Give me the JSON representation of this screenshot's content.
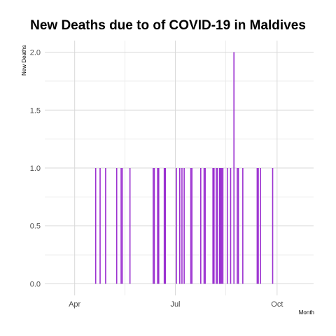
{
  "chart_data": {
    "type": "bar",
    "title": "New Deaths due to of COVID-19 in Maldives",
    "xlabel": "Month",
    "ylabel": "New  Deaths",
    "ylim": [
      -0.1,
      2.1
    ],
    "y_ticks": [
      "0.0",
      "0.5",
      "1.0",
      "1.5",
      "2.0"
    ],
    "x_ticks": [
      {
        "label": "Apr",
        "date": "2020-04-01"
      },
      {
        "label": "Jul",
        "date": "2020-07-01"
      },
      {
        "label": "Oct",
        "date": "2020-10-01"
      }
    ],
    "xlim": [
      "2020-03-05",
      "2020-11-03"
    ],
    "bar_color": "#9b30d0",
    "grid": true,
    "points": [
      {
        "date": "2020-04-20",
        "value": 1
      },
      {
        "date": "2020-04-24",
        "value": 1
      },
      {
        "date": "2020-04-29",
        "value": 1
      },
      {
        "date": "2020-05-09",
        "value": 1
      },
      {
        "date": "2020-05-13",
        "value": 1
      },
      {
        "date": "2020-05-14",
        "value": 1
      },
      {
        "date": "2020-05-21",
        "value": 1
      },
      {
        "date": "2020-06-11",
        "value": 1
      },
      {
        "date": "2020-06-12",
        "value": 1
      },
      {
        "date": "2020-06-15",
        "value": 1
      },
      {
        "date": "2020-06-16",
        "value": 1
      },
      {
        "date": "2020-06-21",
        "value": 1
      },
      {
        "date": "2020-06-22",
        "value": 1
      },
      {
        "date": "2020-07-02",
        "value": 1
      },
      {
        "date": "2020-07-05",
        "value": 1
      },
      {
        "date": "2020-07-07",
        "value": 1
      },
      {
        "date": "2020-07-09",
        "value": 1
      },
      {
        "date": "2020-07-15",
        "value": 1
      },
      {
        "date": "2020-07-16",
        "value": 1
      },
      {
        "date": "2020-07-24",
        "value": 1
      },
      {
        "date": "2020-07-27",
        "value": 1
      },
      {
        "date": "2020-07-28",
        "value": 1
      },
      {
        "date": "2020-08-04",
        "value": 1
      },
      {
        "date": "2020-08-05",
        "value": 1
      },
      {
        "date": "2020-08-07",
        "value": 1
      },
      {
        "date": "2020-08-08",
        "value": 1
      },
      {
        "date": "2020-08-10",
        "value": 1
      },
      {
        "date": "2020-08-11",
        "value": 1
      },
      {
        "date": "2020-08-12",
        "value": 1
      },
      {
        "date": "2020-08-13",
        "value": 1
      },
      {
        "date": "2020-08-17",
        "value": 1
      },
      {
        "date": "2020-08-20",
        "value": 1
      },
      {
        "date": "2020-08-23",
        "value": 2
      },
      {
        "date": "2020-08-26",
        "value": 1
      },
      {
        "date": "2020-08-27",
        "value": 1
      },
      {
        "date": "2020-08-31",
        "value": 1
      },
      {
        "date": "2020-09-13",
        "value": 1
      },
      {
        "date": "2020-09-14",
        "value": 1
      },
      {
        "date": "2020-09-16",
        "value": 1
      },
      {
        "date": "2020-09-27",
        "value": 1
      }
    ]
  }
}
